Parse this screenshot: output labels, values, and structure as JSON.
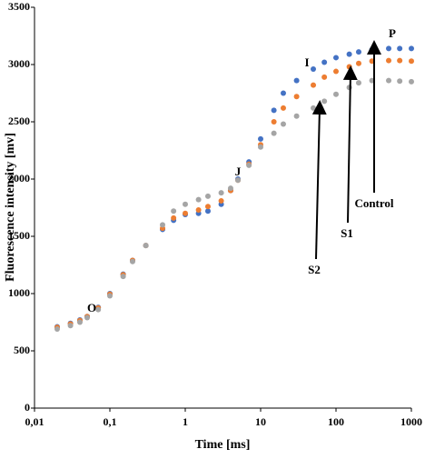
{
  "chart_data": {
    "type": "scatter",
    "xlabel": "Time [ms]",
    "ylabel": "Fluorescence intensity [mv]",
    "xscale": "log",
    "x": [
      0.02,
      0.03,
      0.04,
      0.05,
      0.07,
      0.1,
      0.15,
      0.2,
      0.3,
      0.5,
      0.7,
      1,
      1.5,
      2,
      3,
      4,
      5,
      7,
      10,
      15,
      20,
      30,
      50,
      70,
      100,
      150,
      200,
      300,
      500,
      700,
      1000
    ],
    "series": [
      {
        "name": "Control",
        "color": "#4472c4",
        "values": [
          710,
          740,
          770,
          800,
          880,
          1000,
          1170,
          1290,
          1420,
          1560,
          1640,
          1690,
          1700,
          1720,
          1780,
          1900,
          2000,
          2150,
          2350,
          2600,
          2750,
          2860,
          2960,
          3020,
          3060,
          3090,
          3110,
          3130,
          3140,
          3140,
          3140
        ]
      },
      {
        "name": "S1",
        "color": "#ed7d31",
        "values": [
          705,
          735,
          765,
          800,
          875,
          995,
          1165,
          1290,
          1420,
          1570,
          1660,
          1700,
          1730,
          1760,
          1810,
          1900,
          1990,
          2130,
          2300,
          2500,
          2620,
          2720,
          2820,
          2890,
          2940,
          2980,
          3010,
          3030,
          3035,
          3035,
          3030
        ]
      },
      {
        "name": "S2",
        "color": "#a5a5a5",
        "values": [
          690,
          720,
          750,
          790,
          860,
          980,
          1150,
          1280,
          1420,
          1600,
          1720,
          1780,
          1820,
          1850,
          1880,
          1920,
          1990,
          2120,
          2280,
          2400,
          2480,
          2550,
          2620,
          2680,
          2740,
          2800,
          2840,
          2860,
          2860,
          2855,
          2850
        ]
      }
    ],
    "annotations": [
      "O",
      "J",
      "I",
      "P",
      "Control",
      "S1",
      "S2"
    ],
    "xlim": [
      0.01,
      1000
    ],
    "xticks": [
      {
        "value": 0.01,
        "label": "0,01"
      },
      {
        "value": 0.1,
        "label": "0,1"
      },
      1,
      10,
      100,
      1000
    ],
    "ylim": [
      0,
      3500
    ],
    "yticks": [
      0,
      500,
      1000,
      1500,
      2000,
      2500,
      3000,
      3500
    ],
    "grid": false
  }
}
